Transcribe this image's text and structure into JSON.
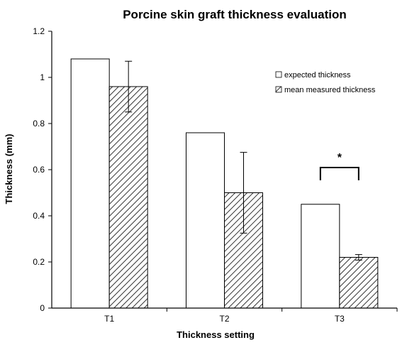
{
  "chart_data": {
    "type": "bar",
    "title": "Porcine skin graft thickness evaluation",
    "xlabel": "Thickness setting",
    "ylabel": "Thickness (mm)",
    "categories": [
      "T1",
      "T2",
      "T3"
    ],
    "ylim": [
      0,
      1.2
    ],
    "yticks": [
      "0",
      "0.2",
      "0.4",
      "0.6",
      "0.8",
      "1",
      "1.2"
    ],
    "grid": false,
    "legend_position": "right",
    "series": [
      {
        "name": "expected thickness",
        "values": [
          1.08,
          0.76,
          0.45
        ],
        "fill": "#ffffff",
        "pattern": "none",
        "errors": null
      },
      {
        "name": "mean measured thickness",
        "values": [
          0.96,
          0.5,
          0.22
        ],
        "fill": "#ffffff",
        "pattern": "diagonal-hatch",
        "errors": [
          0.11,
          0.175,
          0.012
        ]
      }
    ],
    "annotation": {
      "text": "*",
      "category": "T3"
    },
    "colors": {
      "axis": "#000000",
      "hatch": "#333333",
      "bar_stroke": "#000000"
    }
  }
}
